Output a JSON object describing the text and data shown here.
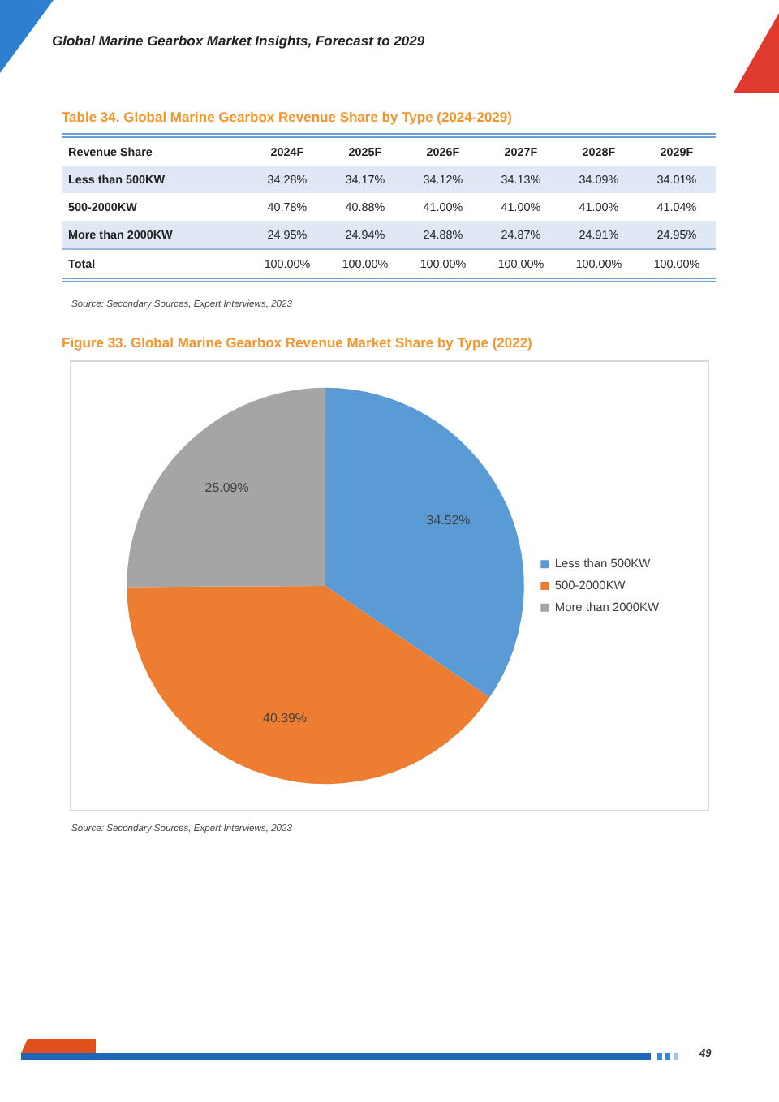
{
  "chart_data": [
    {
      "type": "heatmap",
      "title": "Table 34. Global Marine Gearbox Revenue Share by Type (2024-2029)",
      "ylabel": "Revenue Share",
      "categories": [
        "2024F",
        "2025F",
        "2026F",
        "2027F",
        "2028F",
        "2029F"
      ],
      "y_categories": [
        "Less than 500KW",
        "500-2000KW",
        "More than 2000KW",
        "Total"
      ],
      "cells": [
        [
          34.28,
          34.17,
          34.12,
          34.13,
          34.09,
          34.01
        ],
        [
          40.78,
          40.88,
          41.0,
          41.0,
          41.0,
          41.04
        ],
        [
          24.95,
          24.94,
          24.88,
          24.87,
          24.91,
          24.95
        ],
        [
          100,
          100,
          100,
          100,
          100,
          100
        ]
      ],
      "cell_labels": [
        [
          "34.28%",
          "34.17%",
          "34.12%",
          "34.13%",
          "34.09%",
          "34.01%"
        ],
        [
          "40.78%",
          "40.88%",
          "41.00%",
          "41.00%",
          "41.00%",
          "41.04%"
        ],
        [
          "24.95%",
          "24.94%",
          "24.88%",
          "24.87%",
          "24.91%",
          "24.95%"
        ],
        [
          "100.00%",
          "100.00%",
          "100.00%",
          "100.00%",
          "100.00%",
          "100.00%"
        ]
      ],
      "annotations": [
        "Global Marine Gearbox Market Insights, Forecast to 2029",
        "Source: Secondary Sources, Expert Interviews, 2023"
      ]
    },
    {
      "type": "pie",
      "title": "Figure 33. Global Marine Gearbox Revenue Market Share by Type (2022)",
      "categories": [
        "Less than 500KW",
        "500-2000KW",
        "More than 2000KW"
      ],
      "values": [
        34.52,
        40.39,
        25.09
      ],
      "colors": [
        "#5b9bd5",
        "#ed7d31",
        "#a5a5a5"
      ],
      "value_labels": [
        "34.52%",
        "40.39%",
        "25.09%"
      ],
      "legend": "right",
      "annotations": [
        "Source: Secondary Sources, Expert Interviews, 2023",
        "49"
      ]
    }
  ]
}
